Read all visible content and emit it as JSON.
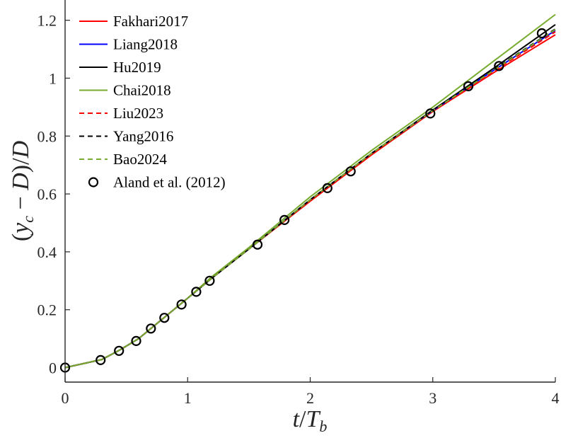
{
  "chart_data": {
    "type": "line",
    "xlabel": "t/T_b",
    "ylabel": "(y_c − D)/D",
    "xlim": [
      0,
      4
    ],
    "ylim": [
      -0.05,
      1.27
    ],
    "xticks": [
      0,
      1,
      2,
      3,
      4
    ],
    "xtick_labels": [
      "0",
      "1",
      "2",
      "3",
      "4"
    ],
    "yticks": [
      0,
      0.2,
      0.4,
      0.6,
      0.8,
      1,
      1.2
    ],
    "ytick_labels": [
      "0",
      "0.2",
      "0.4",
      "0.6",
      "0.8",
      "1",
      "1.2"
    ],
    "grid": false,
    "legend_position": "top-left",
    "series": [
      {
        "name": "Fakhari2017",
        "color": "#ff0000",
        "style": "solid",
        "x": [
          0,
          0.3,
          0.45,
          0.6,
          0.8,
          1.0,
          1.2,
          1.5,
          2.0,
          2.5,
          3.0,
          3.5,
          4.0
        ],
        "y": [
          0,
          0.028,
          0.062,
          0.1,
          0.17,
          0.24,
          0.31,
          0.41,
          0.575,
          0.735,
          0.885,
          1.02,
          1.15
        ]
      },
      {
        "name": "Liang2018",
        "color": "#0000ff",
        "style": "solid",
        "x": [
          0,
          0.3,
          0.45,
          0.6,
          0.8,
          1.0,
          1.2,
          1.5,
          2.0,
          2.5,
          3.0,
          3.5,
          4.0
        ],
        "y": [
          0,
          0.028,
          0.062,
          0.1,
          0.17,
          0.24,
          0.31,
          0.41,
          0.58,
          0.74,
          0.888,
          1.028,
          1.165
        ]
      },
      {
        "name": "Hu2019",
        "color": "#000000",
        "style": "solid",
        "x": [
          0,
          0.3,
          0.45,
          0.6,
          0.8,
          1.0,
          1.2,
          1.5,
          2.0,
          2.5,
          3.0,
          3.5,
          4.0
        ],
        "y": [
          0,
          0.028,
          0.062,
          0.1,
          0.17,
          0.24,
          0.31,
          0.41,
          0.58,
          0.74,
          0.89,
          1.035,
          1.185
        ]
      },
      {
        "name": "Chai2018",
        "color": "#77ac30",
        "style": "solid",
        "x": [
          0,
          0.3,
          0.45,
          0.6,
          0.8,
          1.0,
          1.2,
          1.5,
          2.0,
          2.5,
          3.0,
          3.5,
          4.0
        ],
        "y": [
          0,
          0.028,
          0.062,
          0.1,
          0.17,
          0.24,
          0.315,
          0.415,
          0.59,
          0.75,
          0.9,
          1.06,
          1.22
        ]
      },
      {
        "name": "Liu2023",
        "color": "#ff0000",
        "style": "dashed",
        "x": [
          0,
          0.3,
          0.45,
          0.6,
          0.8,
          1.0,
          1.2,
          1.5,
          2.0,
          2.5,
          3.0,
          3.5,
          4.0
        ],
        "y": [
          0,
          0.028,
          0.062,
          0.1,
          0.17,
          0.24,
          0.31,
          0.41,
          0.578,
          0.738,
          0.886,
          1.025,
          1.16
        ]
      },
      {
        "name": "Yang2016",
        "color": "#000000",
        "style": "dashed",
        "x": [
          0,
          0.3,
          0.45,
          0.6,
          0.8,
          1.0,
          1.2,
          1.5,
          2.0,
          2.5,
          3.0,
          3.5,
          4.0
        ],
        "y": [
          0,
          0.028,
          0.062,
          0.1,
          0.17,
          0.24,
          0.31,
          0.41,
          0.58,
          0.74,
          0.888,
          1.03,
          1.17
        ]
      },
      {
        "name": "Bao2024",
        "color": "#77ac30",
        "style": "dashed",
        "x": [
          0,
          0.3,
          0.45,
          0.6,
          0.8,
          1.0,
          1.2,
          1.5,
          2.0,
          2.5,
          3.0,
          3.5,
          4.0
        ],
        "y": [
          0,
          0.028,
          0.062,
          0.1,
          0.17,
          0.24,
          0.31,
          0.41,
          0.58,
          0.74,
          0.888,
          1.028,
          1.168
        ]
      },
      {
        "name": "Aland et al. (2012)",
        "color": "#000000",
        "style": "markers",
        "x": [
          0,
          0.29,
          0.44,
          0.58,
          0.7,
          0.81,
          0.95,
          1.07,
          1.18,
          1.57,
          1.79,
          2.14,
          2.33,
          2.98,
          3.29,
          3.54,
          3.89
        ],
        "y": [
          0,
          0.026,
          0.058,
          0.092,
          0.135,
          0.172,
          0.218,
          0.262,
          0.3,
          0.425,
          0.51,
          0.62,
          0.678,
          0.878,
          0.972,
          1.042,
          1.155
        ]
      }
    ]
  }
}
